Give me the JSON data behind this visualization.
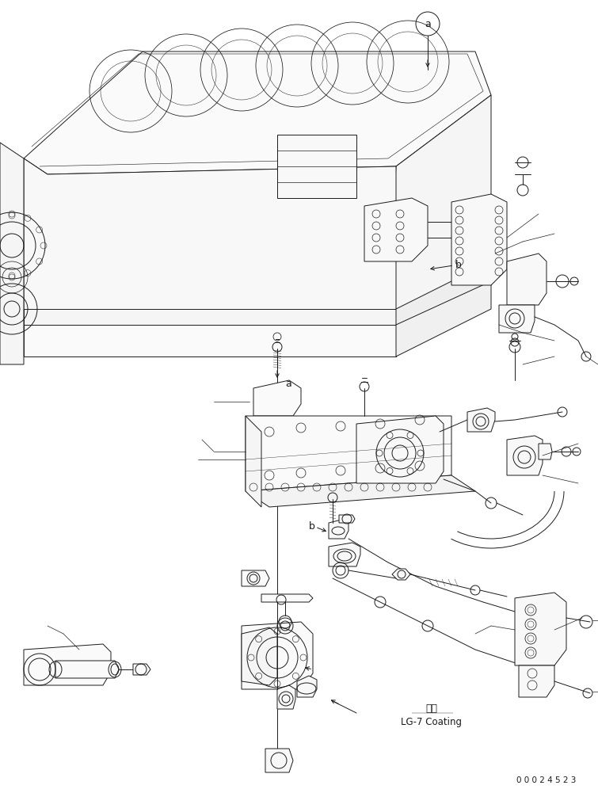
{
  "background_color": "#ffffff",
  "line_color": "#1a1a1a",
  "lw": 0.7,
  "fig_width": 7.55,
  "fig_height": 10.01,
  "dpi": 100,
  "coating_zh": "塗布",
  "coating_en": "LG-7 Coating",
  "part_no": "0 0 0 2 4 5 2 3",
  "label_a1": "a",
  "label_b1": "b",
  "label_a2": "a",
  "label_b2": "b"
}
